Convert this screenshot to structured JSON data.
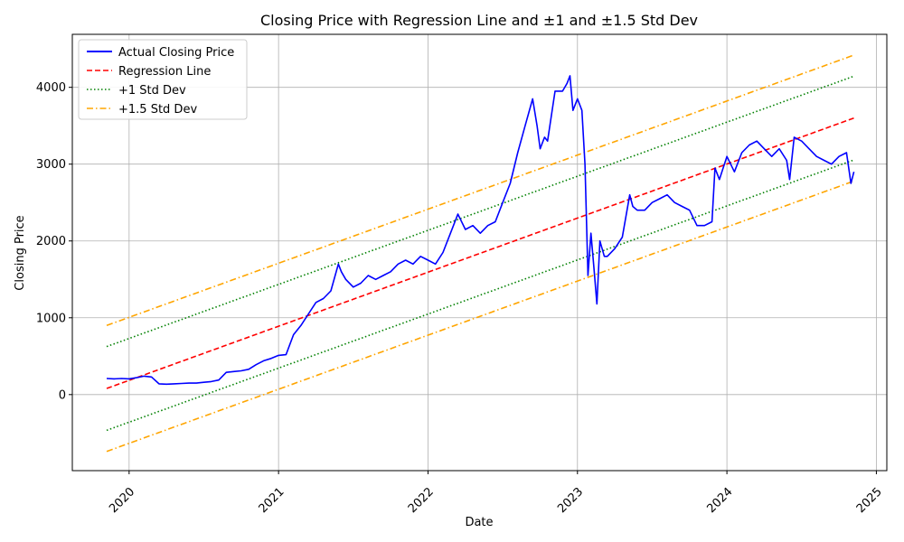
{
  "chart_data": {
    "type": "line",
    "title": "Closing Price with Regression Line and ±1 and ±1.5 Std Dev",
    "xlabel": "Date",
    "ylabel": "Closing Price",
    "xlim": [
      2019.62,
      2025.07
    ],
    "ylim": [
      -990,
      4690
    ],
    "x_ticks": [
      2020,
      2021,
      2022,
      2023,
      2024,
      2025
    ],
    "x_tick_labels": [
      "2020",
      "2021",
      "2022",
      "2023",
      "2024",
      "2025"
    ],
    "y_ticks": [
      0,
      1000,
      2000,
      3000,
      4000
    ],
    "y_tick_labels": [
      "0",
      "1000",
      "2000",
      "3000",
      "4000"
    ],
    "grid": true,
    "legend_position": "top-left",
    "legend": [
      "Actual Closing Price",
      "Regression Line",
      "+1 Std Dev",
      "+1.5 Std Dev"
    ],
    "colors": {
      "actual": "#0000ff",
      "regression": "#ff0000",
      "std1": "#008000",
      "std15": "#ffa500"
    },
    "regression": {
      "x_start": 2019.85,
      "y_start": 80,
      "x_end": 2024.85,
      "y_end": 3600
    },
    "std_dev_offsets": {
      "std1": 545,
      "std15": 820
    },
    "series": [
      {
        "name": "Actual Closing Price",
        "x": [
          2019.85,
          2019.9,
          2019.95,
          2020.0,
          2020.05,
          2020.1,
          2020.15,
          2020.2,
          2020.25,
          2020.3,
          2020.35,
          2020.4,
          2020.45,
          2020.5,
          2020.55,
          2020.6,
          2020.65,
          2020.7,
          2020.75,
          2020.8,
          2020.85,
          2020.9,
          2020.95,
          2021.0,
          2021.05,
          2021.1,
          2021.15,
          2021.2,
          2021.25,
          2021.3,
          2021.35,
          2021.4,
          2021.42,
          2021.45,
          2021.5,
          2021.55,
          2021.6,
          2021.65,
          2021.7,
          2021.75,
          2021.8,
          2021.85,
          2021.9,
          2021.95,
          2022.0,
          2022.05,
          2022.1,
          2022.15,
          2022.2,
          2022.25,
          2022.3,
          2022.35,
          2022.4,
          2022.45,
          2022.5,
          2022.55,
          2022.6,
          2022.65,
          2022.7,
          2022.73,
          2022.75,
          2022.78,
          2022.8,
          2022.85,
          2022.9,
          2022.93,
          2022.95,
          2022.97,
          2023.0,
          2023.03,
          2023.05,
          2023.07,
          2023.09,
          2023.11,
          2023.13,
          2023.15,
          2023.18,
          2023.2,
          2023.25,
          2023.3,
          2023.35,
          2023.37,
          2023.4,
          2023.45,
          2023.5,
          2023.55,
          2023.6,
          2023.65,
          2023.7,
          2023.75,
          2023.8,
          2023.85,
          2023.9,
          2023.92,
          2023.95,
          2024.0,
          2024.05,
          2024.1,
          2024.15,
          2024.2,
          2024.25,
          2024.3,
          2024.35,
          2024.4,
          2024.42,
          2024.45,
          2024.5,
          2024.55,
          2024.6,
          2024.65,
          2024.7,
          2024.75,
          2024.8,
          2024.83,
          2024.85
        ],
        "y": [
          210,
          205,
          210,
          205,
          220,
          240,
          230,
          140,
          135,
          140,
          145,
          150,
          150,
          160,
          170,
          190,
          290,
          300,
          310,
          330,
          390,
          440,
          470,
          510,
          520,
          780,
          900,
          1050,
          1200,
          1250,
          1350,
          1700,
          1600,
          1500,
          1400,
          1450,
          1550,
          1500,
          1550,
          1600,
          1700,
          1750,
          1700,
          1800,
          1750,
          1700,
          1850,
          2100,
          2350,
          2150,
          2200,
          2100,
          2200,
          2250,
          2500,
          2750,
          3150,
          3500,
          3850,
          3500,
          3200,
          3350,
          3300,
          3950,
          3950,
          4050,
          4150,
          3700,
          3850,
          3700,
          3000,
          1550,
          2100,
          1650,
          1180,
          2000,
          1800,
          1800,
          1900,
          2050,
          2600,
          2450,
          2400,
          2400,
          2500,
          2550,
          2600,
          2500,
          2450,
          2400,
          2200,
          2200,
          2250,
          2950,
          2800,
          3100,
          2900,
          3150,
          3250,
          3300,
          3200,
          3100,
          3200,
          3050,
          2800,
          3350,
          3300,
          3200,
          3100,
          3050,
          3000,
          3100,
          3150,
          2750,
          2900
        ]
      }
    ]
  }
}
